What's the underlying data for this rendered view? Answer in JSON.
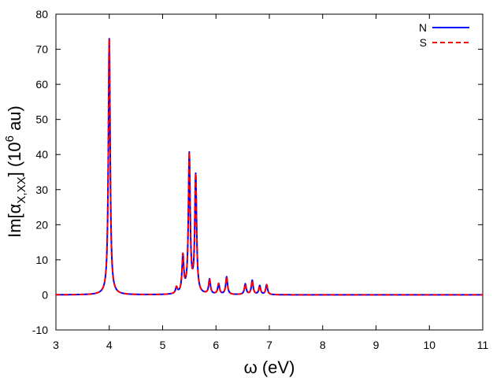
{
  "chart_data": {
    "type": "line",
    "xlabel": "ω (eV)",
    "ylabel": {
      "prefix": "Im[α",
      "subscript": "X,XX",
      "middle": "] (10",
      "superscript": "6",
      "suffix": " au)"
    },
    "xlim": [
      3,
      11
    ],
    "ylim": [
      -10,
      80
    ],
    "x_ticks": [
      3,
      4,
      5,
      6,
      7,
      8,
      9,
      10,
      11
    ],
    "y_ticks": [
      -10,
      0,
      10,
      20,
      30,
      40,
      50,
      60,
      70,
      80
    ],
    "grid": false,
    "legend_position": "top-right",
    "baseline": 0,
    "lorentzian_width_eV": 0.02,
    "series": [
      {
        "name": "N",
        "color": "#0000ff",
        "dash": "solid"
      },
      {
        "name": "S",
        "color": "#ff0000",
        "dash": "dashed"
      }
    ],
    "peaks": [
      {
        "x": 4.0,
        "y": 73
      },
      {
        "x": 5.26,
        "y": 1.8
      },
      {
        "x": 5.38,
        "y": 10.5
      },
      {
        "x": 5.5,
        "y": 39.5
      },
      {
        "x": 5.62,
        "y": 33.5
      },
      {
        "x": 5.88,
        "y": 4.2
      },
      {
        "x": 6.05,
        "y": 3.0
      },
      {
        "x": 6.2,
        "y": 5.0
      },
      {
        "x": 6.55,
        "y": 3.0
      },
      {
        "x": 6.68,
        "y": 4.0
      },
      {
        "x": 6.82,
        "y": 2.5
      },
      {
        "x": 6.95,
        "y": 2.8
      }
    ]
  }
}
